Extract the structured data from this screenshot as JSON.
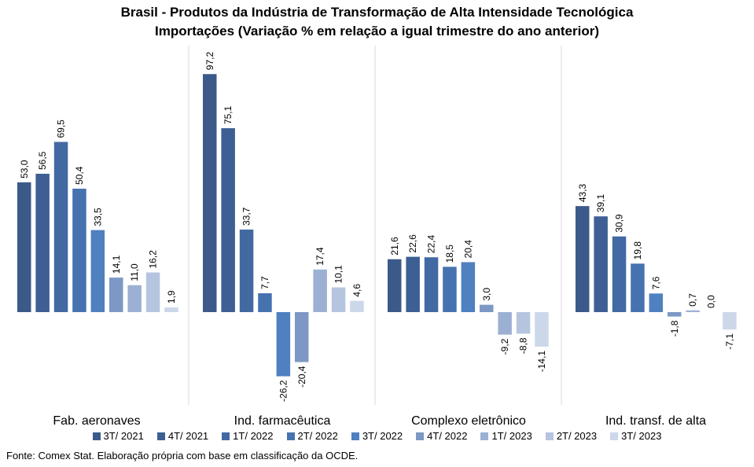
{
  "title_line1": "Brasil - Produtos da Indústria de Transformação de Alta Intensidade Tecnológica",
  "title_line2": "Importações (Variação % em relação a igual trimestre do ano anterior)",
  "source_note": "Fonte: Comex Stat. Elaboração própria com base em classificação da OCDE.",
  "chart_data": {
    "type": "bar",
    "title": "Brasil - Produtos da Indústria de Transformação de Alta Intensidade Tecnológica",
    "subtitle": "Importações (Variação % em relação a igual trimestre do ano anterior)",
    "categories": [
      "Fab. aeronaves",
      "Ind. farmacêutica",
      "Complexo eletrônico",
      "Ind. transf. de alta"
    ],
    "legend_position": "bottom",
    "grid": false,
    "ylim": [
      -40,
      105
    ],
    "series": [
      {
        "name": "3T/ 2021",
        "color": "#3b5a8a",
        "values": [
          53.0,
          97.2,
          21.6,
          43.3
        ],
        "labels": [
          "53,0",
          "97,2",
          "21,6",
          "43,3"
        ]
      },
      {
        "name": "4T/ 2021",
        "color": "#3e5f94",
        "values": [
          56.5,
          75.1,
          22.6,
          39.1
        ],
        "labels": [
          "56,5",
          "75,1",
          "22,6",
          "39,1"
        ]
      },
      {
        "name": "1T/ 2022",
        "color": "#4269a2",
        "values": [
          69.5,
          33.7,
          22.4,
          30.9
        ],
        "labels": [
          "69,5",
          "33,7",
          "22,4",
          "30,9"
        ]
      },
      {
        "name": "2T/ 2022",
        "color": "#4672b0",
        "values": [
          50.4,
          7.7,
          18.5,
          19.8
        ],
        "labels": [
          "50,4",
          "7,7",
          "18,5",
          "19,8"
        ]
      },
      {
        "name": "3T/ 2022",
        "color": "#4f80c0",
        "values": [
          33.5,
          -26.2,
          20.4,
          7.6
        ],
        "labels": [
          "33,5",
          "-26,2",
          "20,4",
          "7,6"
        ]
      },
      {
        "name": "4T/ 2022",
        "color": "#7d98c4",
        "values": [
          14.1,
          -20.4,
          3.0,
          -1.8
        ],
        "labels": [
          "14,1",
          "-20,4",
          "3,0",
          "-1,8"
        ]
      },
      {
        "name": "1T/ 2023",
        "color": "#9cb0d3",
        "values": [
          11.0,
          17.4,
          -9.2,
          0.7
        ],
        "labels": [
          "11,0",
          "17,4",
          "-9,2",
          "0,7"
        ]
      },
      {
        "name": "2T/ 2023",
        "color": "#b5c5e0",
        "values": [
          16.2,
          10.1,
          -8.8,
          0.0
        ],
        "labels": [
          "16,2",
          "10,1",
          "-8,8",
          "0,0"
        ]
      },
      {
        "name": "3T/ 2023",
        "color": "#ccd7ea",
        "values": [
          1.9,
          4.6,
          -14.1,
          -7.1
        ],
        "labels": [
          "1,9",
          "4,6",
          "-14,1",
          "-7,1"
        ]
      }
    ]
  }
}
